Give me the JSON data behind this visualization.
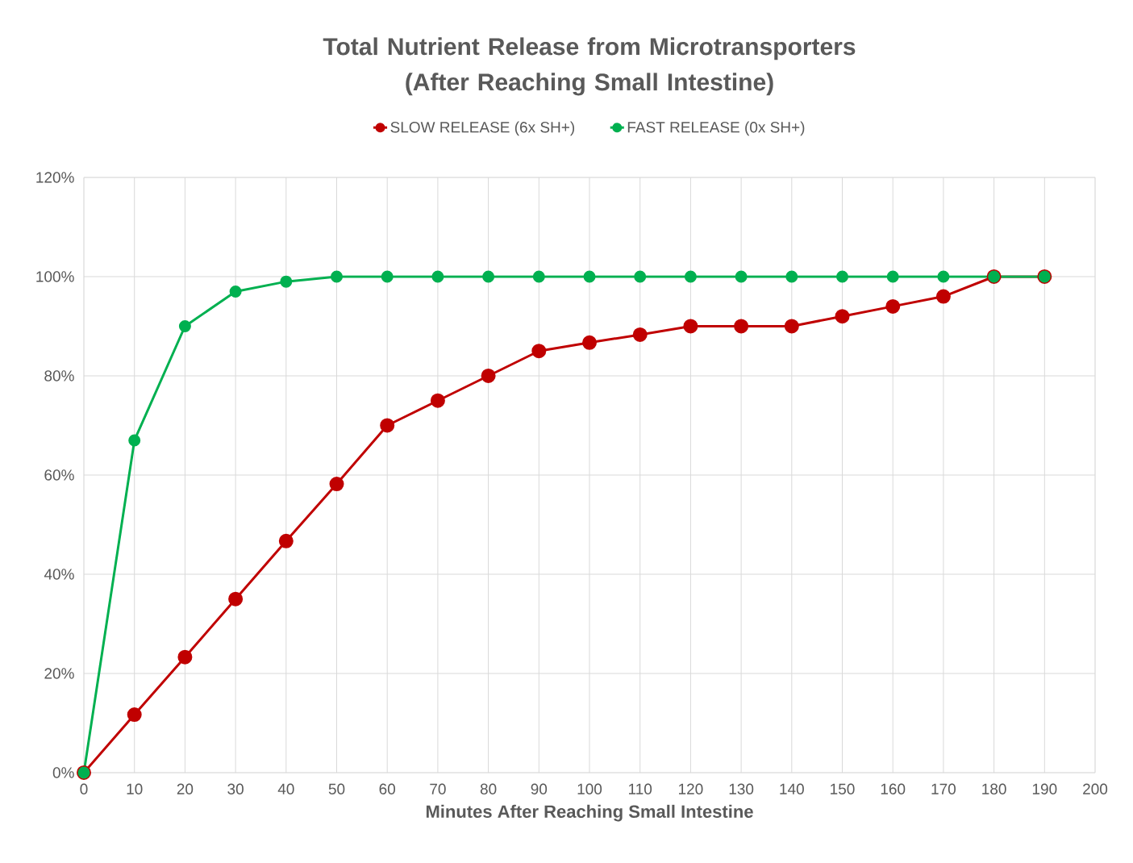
{
  "chart_data": {
    "type": "line",
    "title": "Total Nutrient Release from Microtransporters (After Reaching Small Intestine)",
    "xlabel": "Minutes After Reaching Small Intestine",
    "x": [
      0,
      10,
      20,
      30,
      40,
      50,
      60,
      70,
      80,
      90,
      100,
      110,
      120,
      130,
      140,
      150,
      160,
      170,
      180,
      190
    ],
    "series": [
      {
        "name": "SLOW RELEASE (6x SH+)",
        "color": "#c00000",
        "values": [
          0,
          11.7,
          23.3,
          35,
          46.7,
          58.2,
          70,
          75,
          80,
          85,
          86.7,
          88.3,
          90,
          90,
          90,
          92,
          94,
          96,
          100,
          100
        ]
      },
      {
        "name": "FAST RELEASE (0x SH+)",
        "color": "#00b050",
        "values": [
          0,
          67,
          90,
          97,
          99,
          100,
          100,
          100,
          100,
          100,
          100,
          100,
          100,
          100,
          100,
          100,
          100,
          100,
          100,
          100
        ]
      }
    ],
    "xlim": [
      0,
      200
    ],
    "xticks": [
      0,
      10,
      20,
      30,
      40,
      50,
      60,
      70,
      80,
      90,
      100,
      110,
      120,
      130,
      140,
      150,
      160,
      170,
      180,
      190,
      200
    ],
    "ylim": [
      0,
      120
    ],
    "yticks": [
      {
        "value": 0,
        "label": "0%"
      },
      {
        "value": 20,
        "label": "20%"
      },
      {
        "value": 40,
        "label": "40%"
      },
      {
        "value": 60,
        "label": "60%"
      },
      {
        "value": 80,
        "label": "80%"
      },
      {
        "value": 100,
        "label": "100%"
      },
      {
        "value": 120,
        "label": "120%"
      }
    ],
    "grid": true,
    "legend": "top",
    "marker": "circle",
    "line_style": "solid"
  }
}
